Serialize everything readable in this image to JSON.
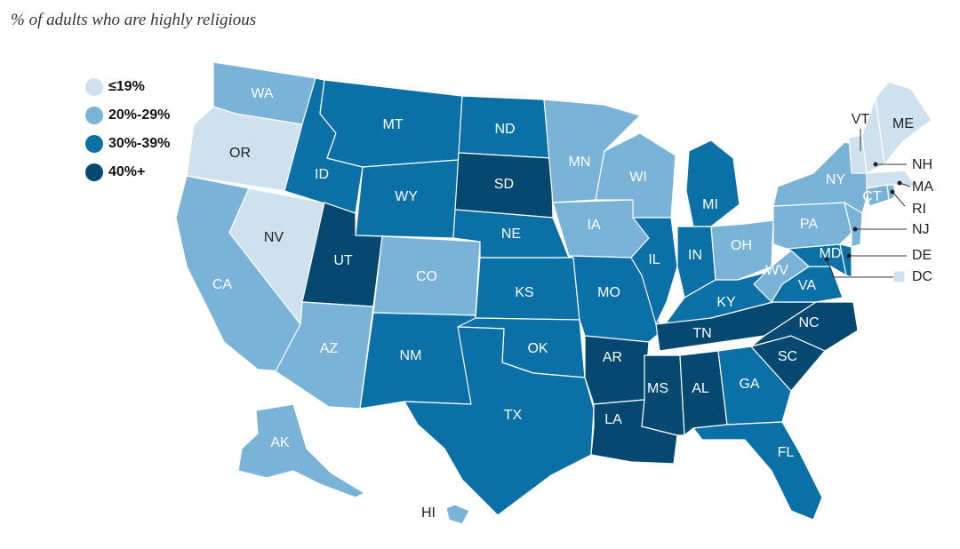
{
  "title": "% of adults who are highly religious",
  "colors": {
    "c1": "#cfe1ef",
    "c2": "#7ab3d8",
    "c3": "#0b70a6",
    "c4": "#06486f",
    "border": "#ffffff"
  },
  "legend": [
    {
      "label": "≤19%",
      "bin": "c1"
    },
    {
      "label": "20%-29%",
      "bin": "c2"
    },
    {
      "label": "30%-39%",
      "bin": "c3"
    },
    {
      "label": "40%+",
      "bin": "c4"
    }
  ],
  "states": {
    "AK": {
      "label": "AK",
      "bin": "c2"
    },
    "AL": {
      "label": "AL",
      "bin": "c4"
    },
    "AR": {
      "label": "AR",
      "bin": "c4"
    },
    "AZ": {
      "label": "AZ",
      "bin": "c2"
    },
    "CA": {
      "label": "CA",
      "bin": "c2"
    },
    "CO": {
      "label": "CO",
      "bin": "c2"
    },
    "CT": {
      "label": "CT",
      "bin": "c2"
    },
    "DC": {
      "label": "DC",
      "bin": "c1"
    },
    "DE": {
      "label": "DE",
      "bin": "c3"
    },
    "FL": {
      "label": "FL",
      "bin": "c3"
    },
    "GA": {
      "label": "GA",
      "bin": "c3"
    },
    "HI": {
      "label": "HI",
      "bin": "c2"
    },
    "IA": {
      "label": "IA",
      "bin": "c2"
    },
    "ID": {
      "label": "ID",
      "bin": "c3"
    },
    "IL": {
      "label": "IL",
      "bin": "c3"
    },
    "IN": {
      "label": "IN",
      "bin": "c3"
    },
    "KS": {
      "label": "KS",
      "bin": "c3"
    },
    "KY": {
      "label": "KY",
      "bin": "c3"
    },
    "LA": {
      "label": "LA",
      "bin": "c4"
    },
    "MA": {
      "label": "MA",
      "bin": "c1"
    },
    "MD": {
      "label": "MD",
      "bin": "c3"
    },
    "ME": {
      "label": "ME",
      "bin": "c1"
    },
    "MI": {
      "label": "MI",
      "bin": "c3"
    },
    "MN": {
      "label": "MN",
      "bin": "c2"
    },
    "MO": {
      "label": "MO",
      "bin": "c3"
    },
    "MS": {
      "label": "MS",
      "bin": "c4"
    },
    "MT": {
      "label": "MT",
      "bin": "c3"
    },
    "NC": {
      "label": "NC",
      "bin": "c4"
    },
    "ND": {
      "label": "ND",
      "bin": "c3"
    },
    "NE": {
      "label": "NE",
      "bin": "c3"
    },
    "NH": {
      "label": "NH",
      "bin": "c1"
    },
    "NJ": {
      "label": "NJ",
      "bin": "c2"
    },
    "NM": {
      "label": "NM",
      "bin": "c3"
    },
    "NV": {
      "label": "NV",
      "bin": "c1"
    },
    "NY": {
      "label": "NY",
      "bin": "c2"
    },
    "OH": {
      "label": "OH",
      "bin": "c2"
    },
    "OK": {
      "label": "OK",
      "bin": "c3"
    },
    "OR": {
      "label": "OR",
      "bin": "c1"
    },
    "PA": {
      "label": "PA",
      "bin": "c2"
    },
    "RI": {
      "label": "RI",
      "bin": "c2"
    },
    "SC": {
      "label": "SC",
      "bin": "c4"
    },
    "SD": {
      "label": "SD",
      "bin": "c4"
    },
    "TN": {
      "label": "TN",
      "bin": "c4"
    },
    "TX": {
      "label": "TX",
      "bin": "c3"
    },
    "UT": {
      "label": "UT",
      "bin": "c4"
    },
    "VA": {
      "label": "VA",
      "bin": "c3"
    },
    "VT": {
      "label": "VT",
      "bin": "c1"
    },
    "WA": {
      "label": "WA",
      "bin": "c2"
    },
    "WI": {
      "label": "WI",
      "bin": "c2"
    },
    "WV": {
      "label": "WV",
      "bin": "c2"
    },
    "WY": {
      "label": "WY",
      "bin": "c3"
    }
  }
}
